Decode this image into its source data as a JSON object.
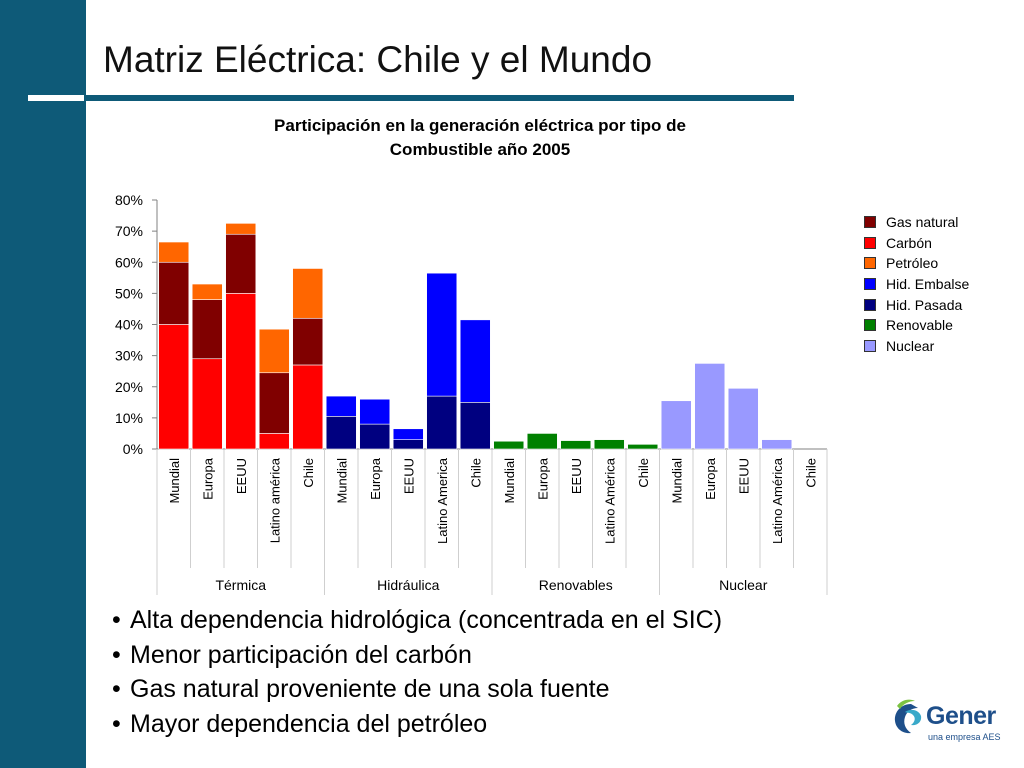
{
  "slide": {
    "title": "Matriz Eléctrica: Chile y el Mundo",
    "bullets": [
      "Alta dependencia hidrológica (concentrada en el SIC)",
      "Menor participación del carbón",
      "Gas natural proveniente de una sola fuente",
      "Mayor dependencia del petróleo"
    ],
    "bullet_symbol": "•",
    "logo": {
      "name": "Gener",
      "tagline": "una empresa AES"
    },
    "colors": {
      "sidebar": "#0e5a78",
      "logo": "#1e4f8a"
    }
  },
  "chart_data": {
    "type": "bar",
    "stacked": true,
    "title": "Participación en la generación eléctrica por tipo de Combustible año 2005",
    "title_lines": [
      "Participación en la generación eléctrica por tipo de",
      "Combustible año 2005"
    ],
    "ylim": [
      0,
      80
    ],
    "yticks": [
      "0%",
      "10%",
      "20%",
      "30%",
      "40%",
      "50%",
      "60%",
      "70%",
      "80%"
    ],
    "grid": false,
    "legend_position": "right",
    "groups": [
      {
        "name": "Térmica",
        "categories": [
          "Mundial",
          "Europa",
          "EEUU",
          "Latino américa",
          "Chile"
        ]
      },
      {
        "name": "Hidráulica",
        "categories": [
          "Mundial",
          "Europa",
          "EEUU",
          "Latino America",
          "Chile"
        ]
      },
      {
        "name": "Renovables",
        "categories": [
          "Mundial",
          "Europa",
          "EEUU",
          "Latino América",
          "Chile"
        ]
      },
      {
        "name": "Nuclear",
        "categories": [
          "Mundial",
          "Europa",
          "EEUU",
          "Latino América",
          "Chile"
        ]
      }
    ],
    "series": [
      {
        "name": "Carbón",
        "color": "#ff0000",
        "values": [
          40,
          29,
          50,
          5,
          27,
          0,
          0,
          0,
          0,
          0,
          0,
          0,
          0,
          0,
          0,
          0,
          0,
          0,
          0,
          0
        ]
      },
      {
        "name": "Gas natural",
        "color": "#800000",
        "values": [
          20,
          19,
          19,
          19.5,
          15,
          0,
          0,
          0,
          0,
          0,
          0,
          0,
          0,
          0,
          0,
          0,
          0,
          0,
          0,
          0
        ]
      },
      {
        "name": "Petróleo",
        "color": "#ff6600",
        "values": [
          6.5,
          5,
          3.5,
          14,
          16,
          0,
          0,
          0,
          0,
          0,
          0,
          0,
          0,
          0,
          0,
          0,
          0,
          0,
          0,
          0
        ]
      },
      {
        "name": "Hid. Pasada",
        "color": "#000080",
        "values": [
          0,
          0,
          0,
          0,
          0,
          10.5,
          8,
          3,
          17,
          15,
          0,
          0,
          0,
          0,
          0,
          0,
          0,
          0,
          0,
          0
        ]
      },
      {
        "name": "Hid. Embalse",
        "color": "#0000ff",
        "values": [
          0,
          0,
          0,
          0,
          0,
          6.5,
          8,
          3.5,
          39.5,
          26.5,
          0,
          0,
          0,
          0,
          0,
          0,
          0,
          0,
          0,
          0
        ]
      },
      {
        "name": "Renovable",
        "color": "#008000",
        "values": [
          0,
          0,
          0,
          0,
          0,
          0,
          0,
          0,
          0,
          0,
          2.5,
          5,
          2.7,
          3,
          1.5,
          0,
          0,
          0,
          0,
          0
        ]
      },
      {
        "name": "Nuclear",
        "color": "#9999ff",
        "values": [
          0,
          0,
          0,
          0,
          0,
          0,
          0,
          0,
          0,
          0,
          0,
          0,
          0,
          0,
          0,
          15.5,
          27.5,
          19.5,
          3,
          0
        ]
      }
    ],
    "legend_order": [
      "Gas natural",
      "Carbón",
      "Petróleo",
      "Hid. Embalse",
      "Hid. Pasada",
      "Renovable",
      "Nuclear"
    ]
  }
}
